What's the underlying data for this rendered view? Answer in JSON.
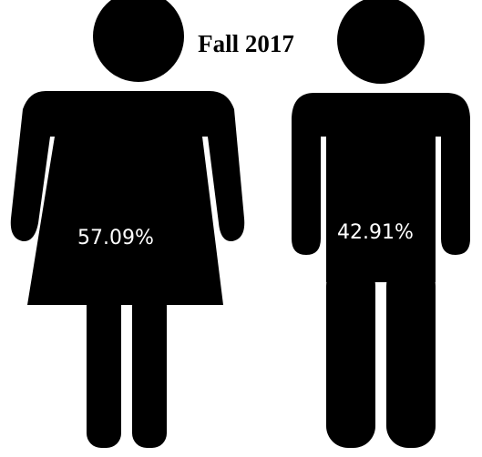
{
  "title": "Fall 2017",
  "figures": [
    {
      "label": "57.09%"
    },
    {
      "label": "42.91%"
    }
  ]
}
